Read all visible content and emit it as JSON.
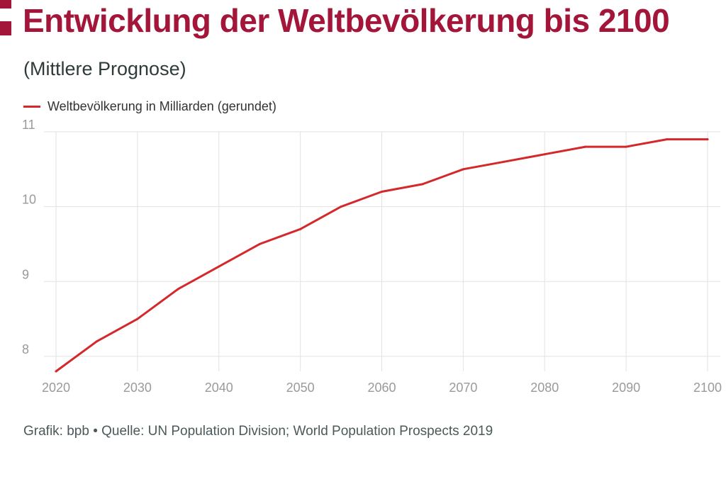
{
  "header": {
    "title": "Entwicklung der Weltbevölkerung bis 2100",
    "subtitle": "(Mittlere Prognose)"
  },
  "colors": {
    "accent": "#a3163a",
    "line": "#d4282a",
    "grid": "#e2e2e2"
  },
  "chart_data": {
    "type": "line",
    "title": "Entwicklung der Weltbevölkerung bis 2100",
    "subtitle": "(Mittlere Prognose)",
    "xlabel": "",
    "ylabel": "",
    "x": [
      2020,
      2025,
      2030,
      2035,
      2040,
      2045,
      2050,
      2055,
      2060,
      2065,
      2070,
      2075,
      2080,
      2085,
      2090,
      2095,
      2100
    ],
    "series": [
      {
        "name": "Weltbevölkerung in Milliarden (gerundet)",
        "values": [
          7.8,
          8.2,
          8.5,
          8.9,
          9.2,
          9.5,
          9.7,
          10.0,
          10.2,
          10.3,
          10.5,
          10.6,
          10.7,
          10.8,
          10.8,
          10.9,
          10.9
        ]
      }
    ],
    "xlim": [
      2020,
      2100
    ],
    "ylim": [
      7.8,
      11
    ],
    "xticks": [
      2020,
      2030,
      2040,
      2050,
      2060,
      2070,
      2080,
      2090,
      2100
    ],
    "yticks": [
      8,
      9,
      10,
      11
    ],
    "grid": true,
    "legend_position": "top-left"
  },
  "footer": {
    "source": "Grafik: bpb • Quelle: UN Population Division; World Population Prospects 2019"
  }
}
